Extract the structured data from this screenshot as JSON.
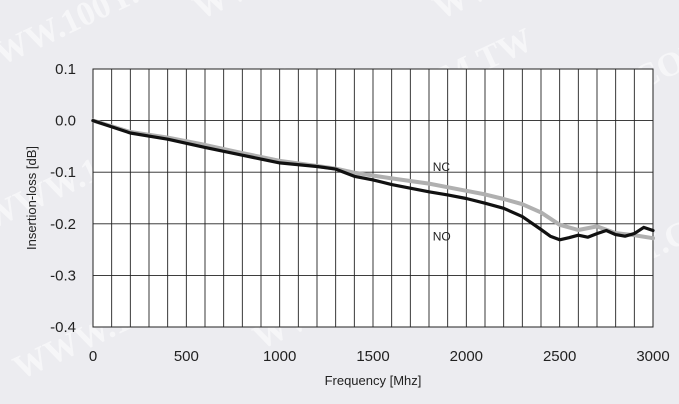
{
  "chart_data": {
    "type": "line",
    "title": "",
    "xlabel": "Frequency [Mhz]",
    "ylabel": "Insertion-loss [dB]",
    "xlim": [
      0,
      3000
    ],
    "ylim": [
      -0.4,
      0.1
    ],
    "x_ticks": [
      0,
      500,
      1000,
      1500,
      2000,
      2500,
      3000
    ],
    "x_tick_labels": [
      "0",
      "500",
      "1000",
      "1500",
      "2000",
      "2500",
      "3000"
    ],
    "y_ticks": [
      0.1,
      0.0,
      -0.1,
      -0.2,
      -0.3,
      -0.4
    ],
    "y_tick_labels": [
      "0.1",
      "0.0",
      "-0.1",
      "-0.2",
      "-0.3",
      "-0.4"
    ],
    "grid": {
      "vertical_step": 100,
      "horizontal_step": 0.1
    },
    "legend": "none",
    "series": [
      {
        "name": "NC",
        "color": "#b0b0b0",
        "x": [
          0,
          200,
          400,
          600,
          800,
          1000,
          1200,
          1300,
          1400,
          1600,
          1800,
          2000,
          2100,
          2200,
          2300,
          2400,
          2500,
          2600,
          2700,
          2800,
          2900,
          3000
        ],
        "y": [
          0.0,
          -0.022,
          -0.033,
          -0.047,
          -0.063,
          -0.078,
          -0.088,
          -0.093,
          -0.101,
          -0.112,
          -0.122,
          -0.136,
          -0.143,
          -0.152,
          -0.162,
          -0.178,
          -0.202,
          -0.212,
          -0.205,
          -0.218,
          -0.222,
          -0.228
        ]
      },
      {
        "name": "NO",
        "color": "#111111",
        "x": [
          0,
          200,
          400,
          600,
          800,
          1000,
          1200,
          1300,
          1400,
          1500,
          1600,
          1700,
          1800,
          1900,
          2000,
          2100,
          2200,
          2300,
          2400,
          2450,
          2500,
          2550,
          2600,
          2650,
          2700,
          2750,
          2800,
          2850,
          2900,
          2950,
          3000
        ],
        "y": [
          0.0,
          -0.024,
          -0.036,
          -0.052,
          -0.067,
          -0.082,
          -0.089,
          -0.094,
          -0.108,
          -0.115,
          -0.124,
          -0.131,
          -0.138,
          -0.144,
          -0.151,
          -0.16,
          -0.17,
          -0.186,
          -0.211,
          -0.224,
          -0.231,
          -0.227,
          -0.222,
          -0.226,
          -0.219,
          -0.213,
          -0.221,
          -0.224,
          -0.219,
          -0.207,
          -0.213
        ]
      }
    ],
    "annotations": [
      {
        "text": "NC",
        "x": 1820,
        "y": -0.09
      },
      {
        "text": "NO",
        "x": 1820,
        "y": -0.225
      }
    ]
  },
  "watermarks": [
    "WWW.100Y.COM.TW",
    "WWW.100Y.COM.TW",
    "WWW.100Y.COM.TW",
    "WWW.100Y.COM.TW",
    "WWW.100Y.COM.TW",
    "WWW.100Y.COM.TW",
    "WWW.100Y.COM.TW",
    "WWW.100Y.COM.TW",
    "WWW.100Y.COM.TW"
  ]
}
